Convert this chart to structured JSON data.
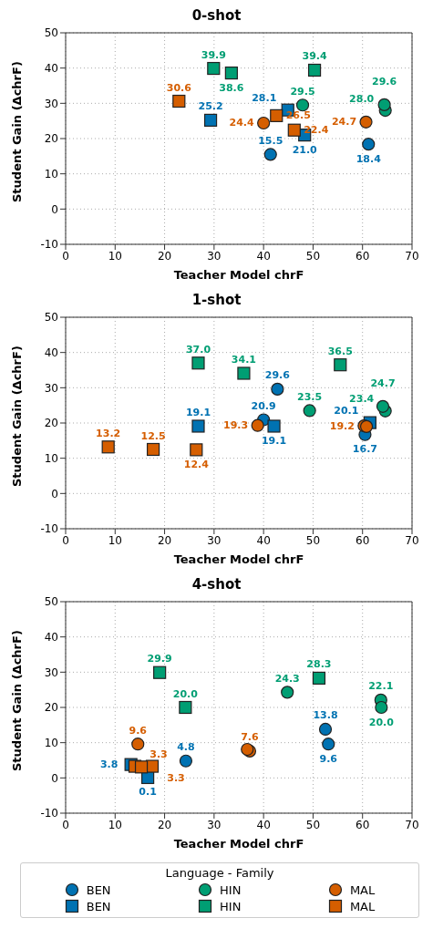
{
  "chart_data": [
    {
      "type": "scatter",
      "title": "0-shot",
      "xlabel": "Teacher Model chrF",
      "ylabel": "Student Gain (ΔchrF)",
      "xlim": [
        0,
        70
      ],
      "xticks": [
        0,
        10,
        20,
        30,
        40,
        50,
        60,
        70
      ],
      "ylim": [
        -10,
        50
      ],
      "yticks": [
        -10,
        0,
        10,
        20,
        30,
        40,
        50
      ],
      "grid": true,
      "series": [
        {
          "color": "#0072b2",
          "marker": "circle",
          "x": [
            41.4,
            61.2
          ],
          "values": [
            15.5,
            18.4
          ],
          "value_labels": [
            "15.5",
            "18.4"
          ]
        },
        {
          "color": "#0072b2",
          "marker": "square",
          "x": [
            29.3,
            44.9,
            48.3
          ],
          "values": [
            25.2,
            28.1,
            21.0
          ],
          "value_labels": [
            "25.2",
            "28.1",
            "21.0"
          ]
        },
        {
          "color": "#009e73",
          "marker": "circle",
          "x": [
            47.9,
            64.6,
            64.4
          ],
          "values": [
            29.5,
            28.0,
            29.6
          ],
          "value_labels": [
            "29.5",
            "28.0",
            "29.6"
          ]
        },
        {
          "color": "#009e73",
          "marker": "square",
          "x": [
            29.9,
            33.5,
            50.3
          ],
          "values": [
            39.9,
            38.6,
            39.4
          ],
          "value_labels": [
            "39.9",
            "38.6",
            "39.4"
          ]
        },
        {
          "color": "#d55e00",
          "marker": "circle",
          "x": [
            40.0,
            60.7
          ],
          "values": [
            24.4,
            24.7
          ],
          "value_labels": [
            "24.4",
            "24.7"
          ]
        },
        {
          "color": "#d55e00",
          "marker": "square",
          "x": [
            22.9,
            42.6,
            46.2
          ],
          "values": [
            30.6,
            26.5,
            22.4
          ],
          "value_labels": [
            "30.6",
            "26.5",
            "22.4"
          ]
        }
      ]
    },
    {
      "type": "scatter",
      "title": "1-shot",
      "xlabel": "Teacher Model chrF",
      "ylabel": "Student Gain (ΔchrF)",
      "xlim": [
        0,
        70
      ],
      "xticks": [
        0,
        10,
        20,
        30,
        40,
        50,
        60,
        70
      ],
      "ylim": [
        -10,
        50
      ],
      "yticks": [
        -10,
        0,
        10,
        20,
        30,
        40,
        50
      ],
      "grid": true,
      "series": [
        {
          "color": "#0072b2",
          "marker": "circle",
          "x": [
            42.8,
            60.5,
            40.0
          ],
          "values": [
            29.6,
            16.7,
            20.9
          ],
          "value_labels": [
            "29.6",
            "16.7",
            "20.9"
          ]
        },
        {
          "color": "#0072b2",
          "marker": "square",
          "x": [
            26.8,
            42.1,
            61.5
          ],
          "values": [
            19.1,
            19.1,
            20.1
          ],
          "value_labels": [
            "19.1",
            "19.1",
            "20.1"
          ]
        },
        {
          "color": "#009e73",
          "marker": "circle",
          "x": [
            49.3,
            64.6,
            64.1
          ],
          "values": [
            23.5,
            23.4,
            24.7
          ],
          "value_labels": [
            "23.5",
            "23.4",
            "24.7"
          ]
        },
        {
          "color": "#009e73",
          "marker": "square",
          "x": [
            26.8,
            36.0,
            55.5
          ],
          "values": [
            37.0,
            34.1,
            36.5
          ],
          "value_labels": [
            "37.0",
            "34.1",
            "36.5"
          ]
        },
        {
          "color": "#d55e00",
          "marker": "circle",
          "x": [
            38.8,
            60.3,
            60.8
          ],
          "values": [
            19.3,
            19.2,
            19.0
          ],
          "value_labels": [
            "19.3",
            "19.2",
            null
          ]
        },
        {
          "color": "#d55e00",
          "marker": "square",
          "x": [
            8.6,
            17.7,
            26.4
          ],
          "values": [
            13.2,
            12.5,
            12.4
          ],
          "value_labels": [
            "13.2",
            "12.5",
            "12.4"
          ]
        }
      ]
    },
    {
      "type": "scatter",
      "title": "4-shot",
      "xlabel": "Teacher Model chrF",
      "ylabel": "Student Gain (ΔchrF)",
      "xlim": [
        0,
        70
      ],
      "xticks": [
        0,
        10,
        20,
        30,
        40,
        50,
        60,
        70
      ],
      "ylim": [
        -10,
        50
      ],
      "yticks": [
        -10,
        0,
        10,
        20,
        30,
        40,
        50
      ],
      "grid": true,
      "legend": "bottom",
      "legend_title": "Language - Family",
      "series": [
        {
          "name": "BEN",
          "color": "#0072b2",
          "marker": "circle",
          "x": [
            24.3,
            52.5,
            53.1
          ],
          "values": [
            4.8,
            13.8,
            9.6
          ],
          "value_labels": [
            "4.8",
            "13.8",
            "9.6"
          ]
        },
        {
          "name": "BEN",
          "color": "#0072b2",
          "marker": "square",
          "x": [
            13.2,
            16.6
          ],
          "values": [
            3.8,
            0.1
          ],
          "value_labels": [
            "3.8",
            "0.1"
          ]
        },
        {
          "name": "HIN",
          "color": "#009e73",
          "marker": "circle",
          "x": [
            44.8,
            63.7,
            63.8
          ],
          "values": [
            24.3,
            22.1,
            20.0
          ],
          "value_labels": [
            "24.3",
            "22.1",
            "20.0"
          ]
        },
        {
          "name": "HIN",
          "color": "#009e73",
          "marker": "square",
          "x": [
            19.0,
            24.2,
            51.2
          ],
          "values": [
            29.9,
            20.0,
            28.3
          ],
          "value_labels": [
            "29.9",
            "20.0",
            "28.3"
          ]
        },
        {
          "name": "MAL",
          "color": "#d55e00",
          "marker": "circle",
          "x": [
            14.6,
            37.2,
            36.7
          ],
          "values": [
            9.6,
            7.6,
            8.1
          ],
          "value_labels": [
            "9.6",
            "7.6",
            null
          ]
        },
        {
          "name": "MAL",
          "color": "#d55e00",
          "marker": "square",
          "x": [
            14.0,
            17.5,
            15.3
          ],
          "values": [
            3.3,
            3.3,
            3.1
          ],
          "value_labels": [
            "3.3",
            "3.3",
            null
          ]
        }
      ]
    }
  ]
}
